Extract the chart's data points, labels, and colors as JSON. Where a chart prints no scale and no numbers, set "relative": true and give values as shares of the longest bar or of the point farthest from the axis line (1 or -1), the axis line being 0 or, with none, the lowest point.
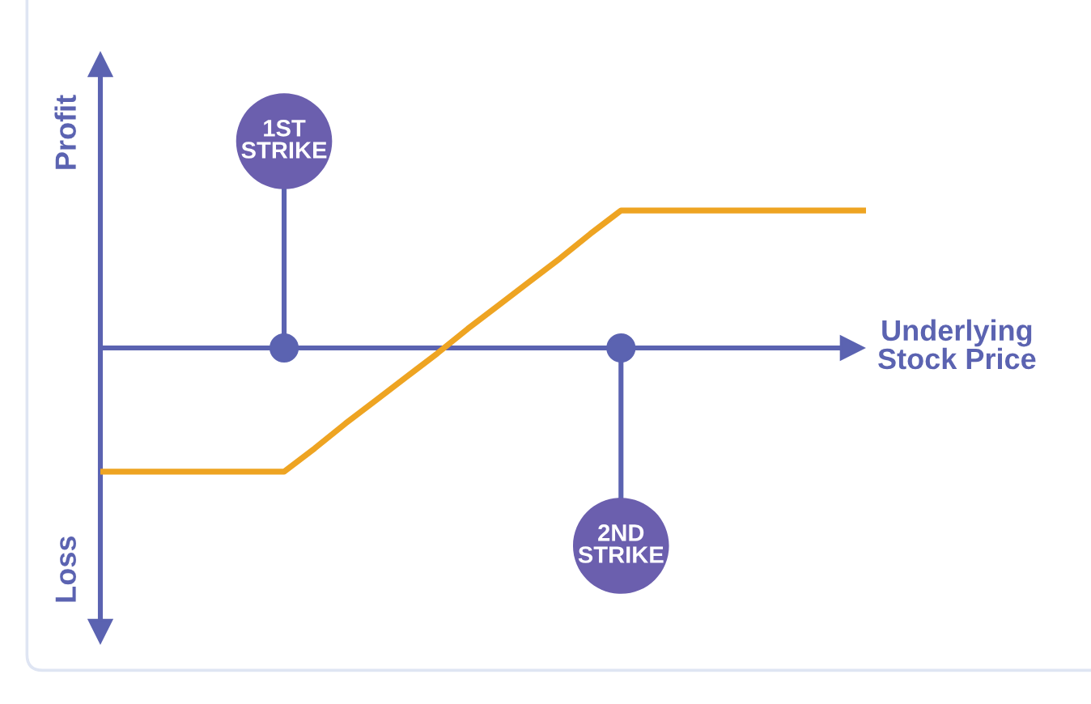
{
  "chart_data": {
    "type": "line",
    "relative": true,
    "xlabel": "Underlying Stock Price",
    "ylabel": "Profit",
    "annotations": [
      "Loss",
      {
        "text": "1ST STRIKE"
      },
      {
        "text": "2ND STRIKE"
      }
    ],
    "ref_lines": [
      {
        "axis": "y",
        "value": 0
      }
    ],
    "categories": [
      null,
      null,
      null,
      null,
      null,
      null,
      null,
      null,
      null,
      null,
      null,
      null,
      null,
      null,
      null,
      null,
      null,
      null,
      null,
      null,
      null,
      null,
      null,
      null,
      null,
      null
    ],
    "series": [
      {
        "color": "#eea422",
        "values": [
          -0.9,
          -0.9,
          -0.9,
          -0.9,
          -0.9,
          -0.9,
          -0.9,
          -0.73,
          -0.55,
          -0.38,
          -0.21,
          -0.04,
          0.14,
          0.31,
          0.48,
          0.65,
          0.83,
          1,
          1,
          1,
          1,
          1,
          1,
          1,
          1,
          1
        ]
      }
    ]
  }
}
